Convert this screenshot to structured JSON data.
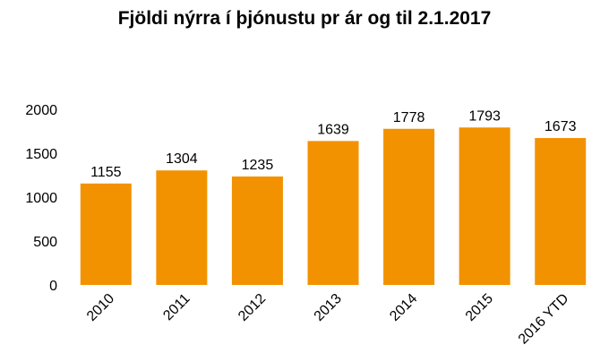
{
  "chart_data": {
    "type": "bar",
    "title": "Fjöldi nýrra í þjónustu pr ár og til 2.1.2017",
    "categories": [
      "2010",
      "2011",
      "2012",
      "2013",
      "2014",
      "2015",
      "2016 YTD"
    ],
    "values": [
      1155,
      1304,
      1235,
      1639,
      1778,
      1793,
      1673
    ],
    "ylim": [
      0,
      2000
    ],
    "yticks": [
      "0",
      "500",
      "1000",
      "1500",
      "2000"
    ],
    "grid": false,
    "legend": "none",
    "data_labels": true,
    "bar_color": "#F39200"
  }
}
